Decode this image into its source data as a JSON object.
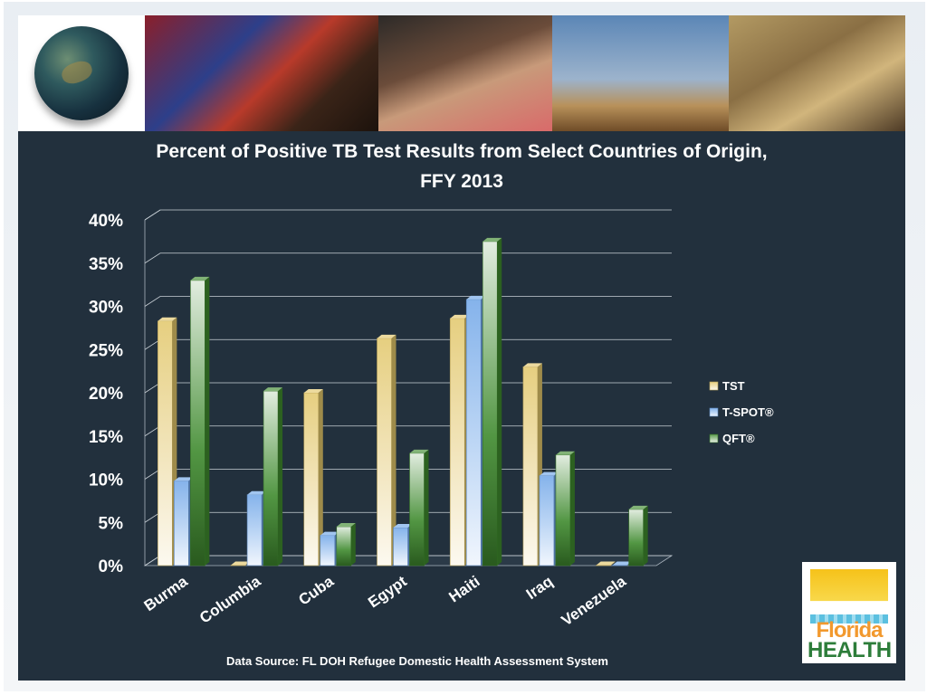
{
  "slide": {
    "source_note": "Data Source: FL DOH Refugee Domestic Health Assessment System",
    "logo": {
      "line1": "Florida",
      "line2": "HEALTH"
    }
  },
  "chart_data": {
    "type": "bar",
    "title_line1": "Percent of Positive TB Test Results from Select Countries of Origin,",
    "title_line2": "FFY 2013",
    "categories": [
      "Burma",
      "Columbia",
      "Cuba",
      "Egypt",
      "Haiti",
      "Iraq",
      "Venezuela"
    ],
    "series": [
      {
        "name": "TST",
        "values": [
          28.3,
          0,
          20.0,
          26.3,
          28.6,
          23.0,
          0
        ],
        "color": "#e2c66a"
      },
      {
        "name": "T-SPOT®",
        "values": [
          9.8,
          8.2,
          3.5,
          4.4,
          30.8,
          10.4,
          0
        ],
        "color": "#6fa5e8"
      },
      {
        "name": "QFT®",
        "values": [
          33.0,
          20.2,
          4.5,
          13.0,
          37.5,
          12.8,
          6.5
        ],
        "color": "#3f8a2e"
      }
    ],
    "ylim": [
      0,
      40
    ],
    "yticks": [
      "0%",
      "5%",
      "10%",
      "15%",
      "20%",
      "25%",
      "30%",
      "35%",
      "40%"
    ],
    "grid": true,
    "legend_position": "right"
  }
}
